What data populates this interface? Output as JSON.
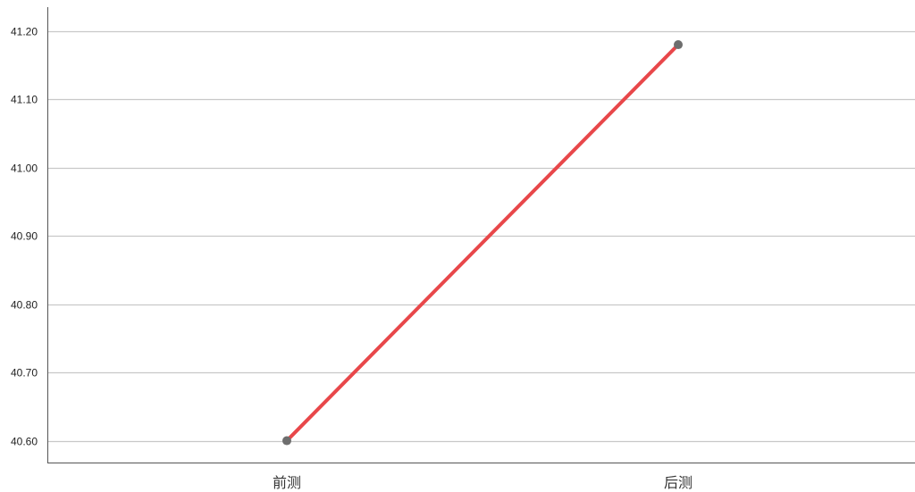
{
  "chart_data": {
    "type": "line",
    "title": "",
    "xlabel": "",
    "ylabel": "",
    "categories": [
      "前测",
      "后测"
    ],
    "series": [
      {
        "values": [
          40.6,
          41.18
        ],
        "color": "#e8474a",
        "marker_color": "#6e6e6e"
      }
    ],
    "ylim": [
      40.568,
      41.235
    ],
    "yticks": [
      40.6,
      40.7,
      40.8,
      40.9,
      41.0,
      41.1,
      41.2
    ],
    "ytick_labels": [
      "40.60",
      "40.70",
      "40.80",
      "40.90",
      "41.00",
      "41.10",
      "41.20"
    ],
    "grid": "horizontal",
    "legend": "none",
    "colors": {
      "grid": "#c8c8c8",
      "axis": "#555555",
      "background": "#ffffff"
    }
  }
}
